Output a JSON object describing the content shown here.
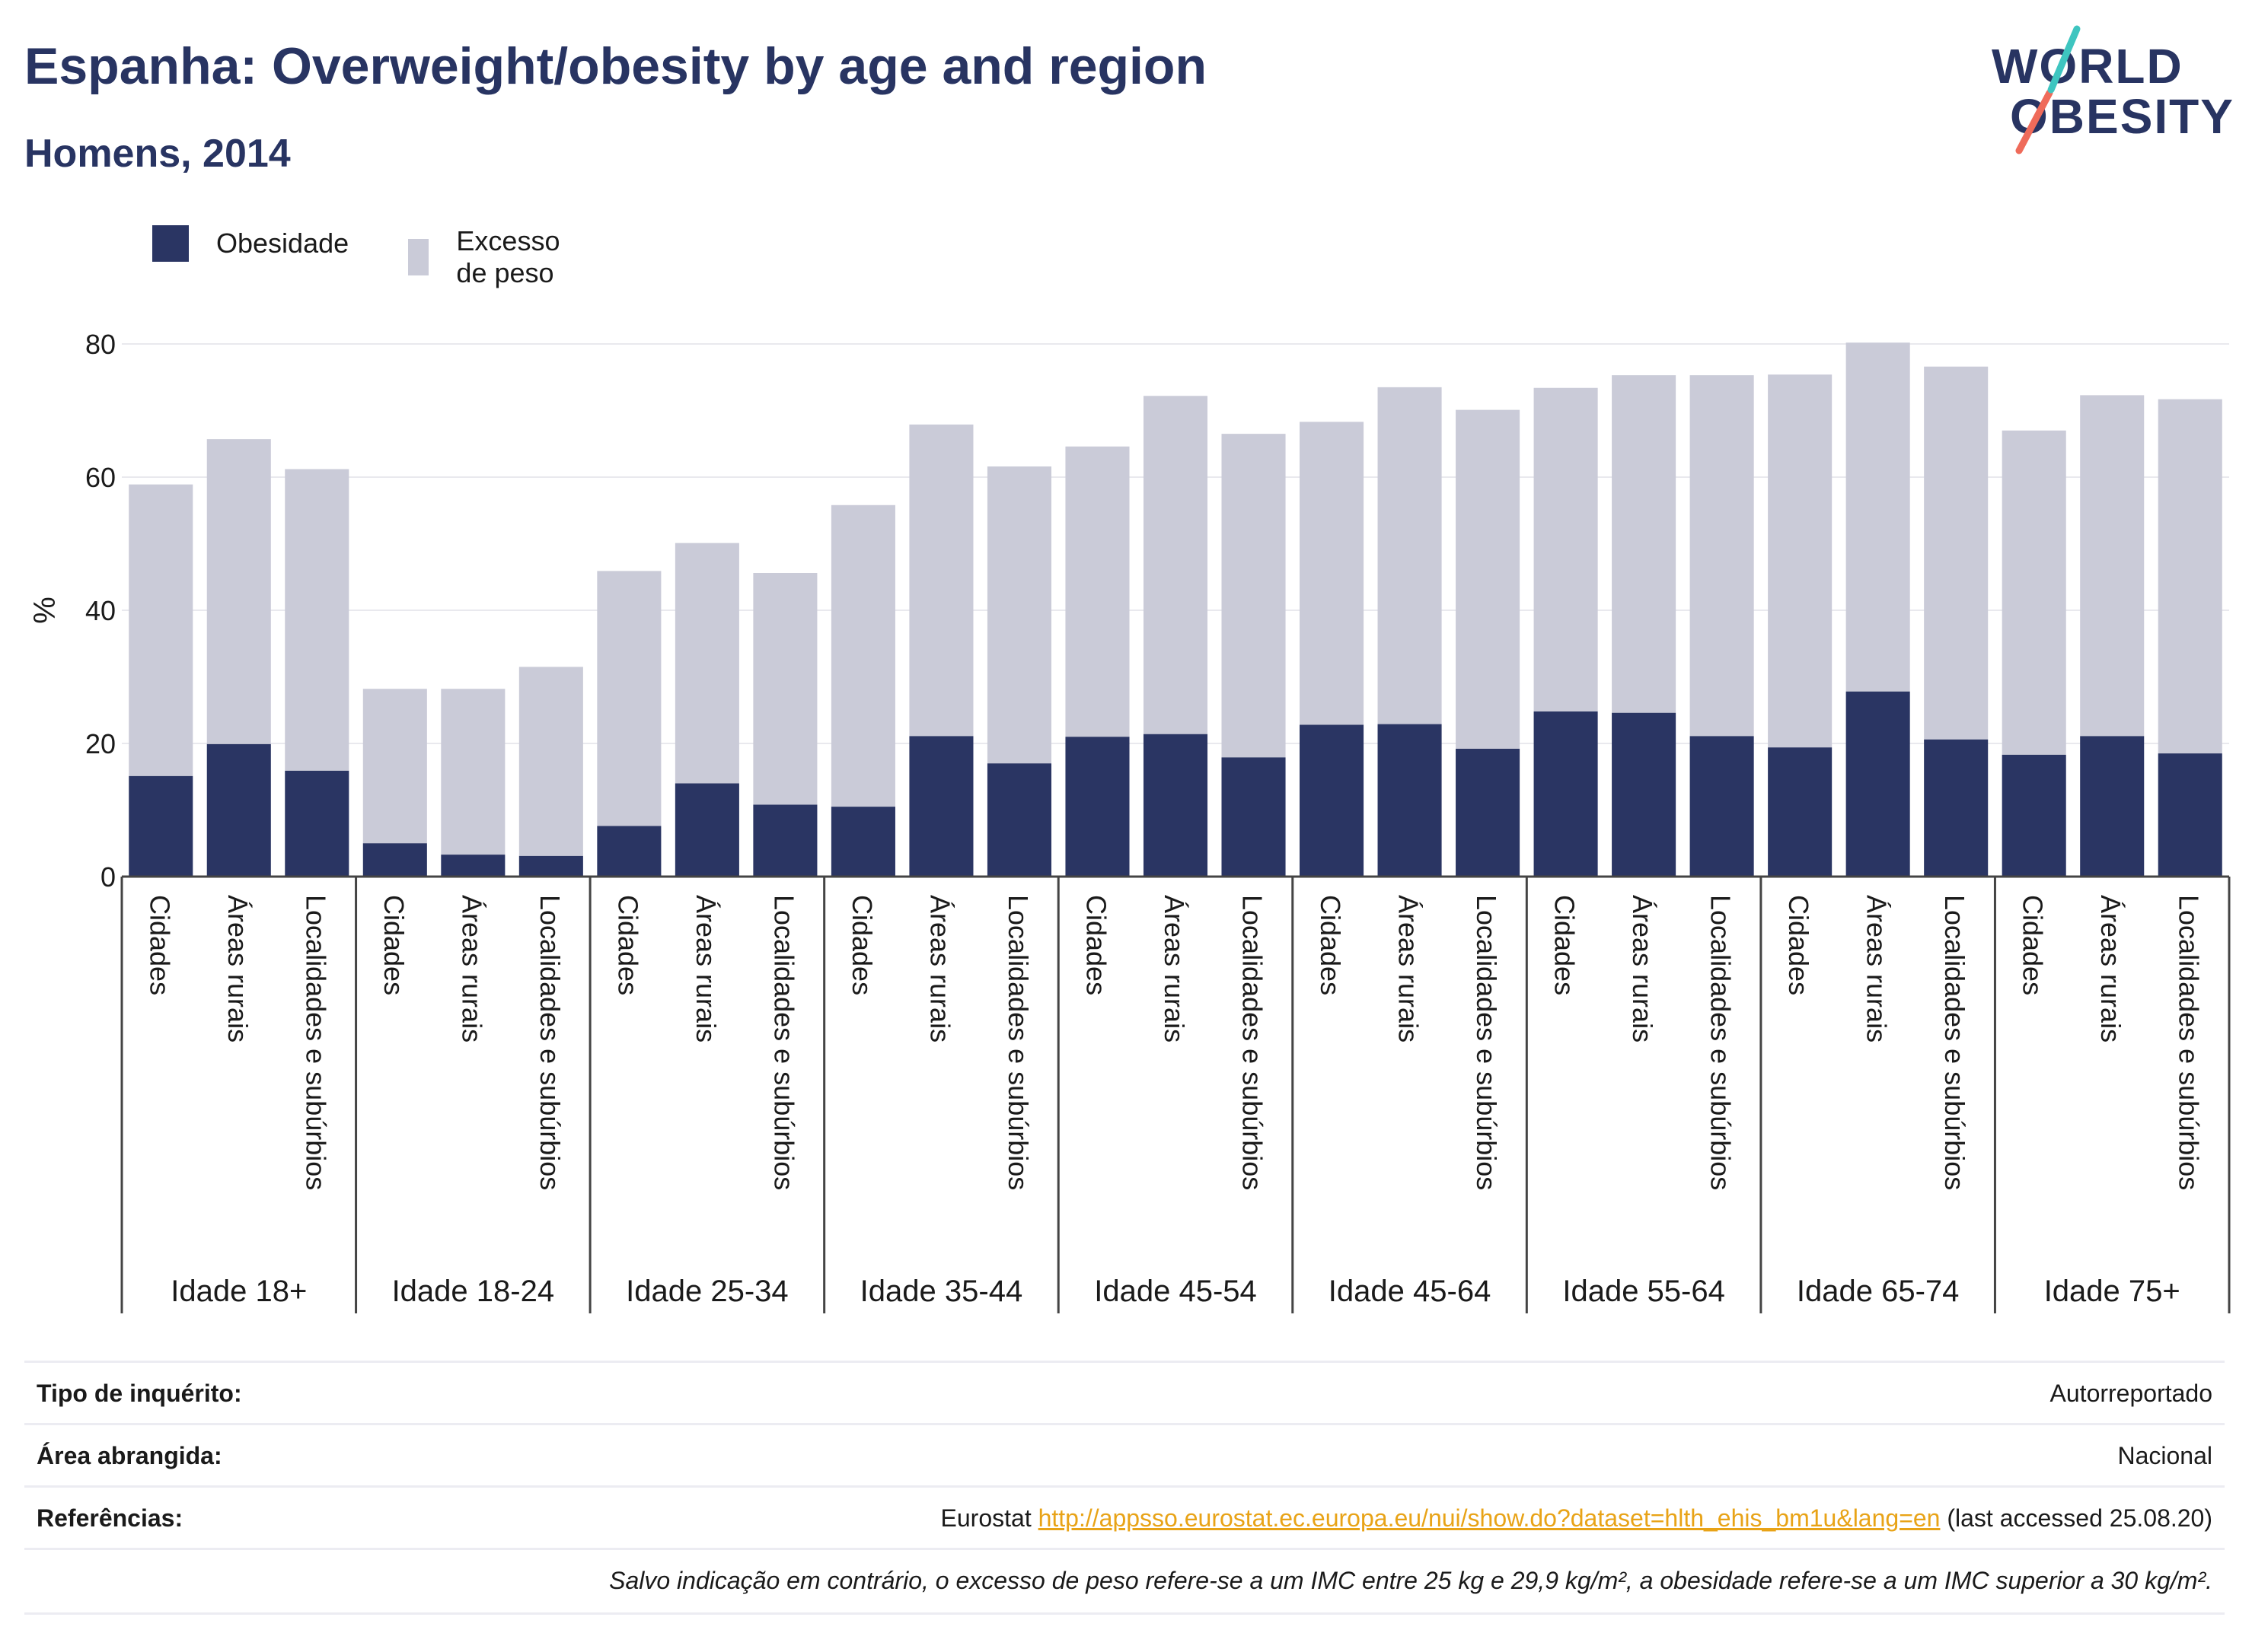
{
  "title": "Espanha: Overweight/obesity by age and region",
  "subtitle": "Homens, 2014",
  "logo": {
    "line1": "WORLD",
    "line2": "OBESITY"
  },
  "legend": {
    "obesity": "Obesidade",
    "overweight": "Excesso de peso"
  },
  "colors": {
    "obesity": "#2a3563",
    "overweight": "#cacbd8",
    "axis_text": "#1a1a1a",
    "grid": "#e9e9ee",
    "link": "#e8a317",
    "logo_navy": "#283462",
    "logo_teal": "#3ec5c0",
    "logo_coral": "#ef6b5a"
  },
  "chart_data": {
    "type": "bar",
    "stacked": true,
    "ylabel": "%",
    "ylim": [
      0,
      80
    ],
    "yticks": [
      "0",
      "20",
      "40",
      "60",
      "80"
    ],
    "grid": true,
    "legend_placement": "top-left",
    "groups": [
      "Idade 18+",
      "Idade 18-24",
      "Idade 25-34",
      "Idade 35-44",
      "Idade 45-54",
      "Idade 45-64",
      "Idade 55-64",
      "Idade 65-74",
      "Idade 75+"
    ],
    "categories": [
      "Cidades",
      "Áreas rurais",
      "Localidades e subúrbios"
    ],
    "series": [
      {
        "name": "Obesidade",
        "values": [
          [
            15.1,
            19.9,
            15.9
          ],
          [
            5.0,
            3.3,
            3.1
          ],
          [
            7.6,
            14.0,
            10.8
          ],
          [
            10.5,
            21.1,
            17.0
          ],
          [
            21.0,
            21.4,
            17.9
          ],
          [
            22.8,
            22.9,
            19.2
          ],
          [
            24.8,
            24.6,
            21.1
          ],
          [
            19.4,
            27.8,
            20.6
          ],
          [
            18.3,
            21.1,
            18.5
          ]
        ]
      },
      {
        "name": "Excesso de peso",
        "values": [
          [
            43.8,
            45.8,
            45.3
          ],
          [
            23.2,
            24.9,
            28.4
          ],
          [
            38.3,
            36.1,
            34.8
          ],
          [
            45.3,
            46.8,
            44.6
          ],
          [
            43.6,
            50.8,
            48.6
          ],
          [
            45.5,
            50.6,
            50.9
          ],
          [
            48.6,
            50.7,
            54.2
          ],
          [
            56.0,
            52.4,
            56.0
          ],
          [
            48.7,
            51.2,
            53.2
          ]
        ]
      }
    ]
  },
  "footer": {
    "survey_key": "Tipo de inquérito:",
    "survey_val": "Autorreportado",
    "area_key": "Área abrangida:",
    "area_val": "Nacional",
    "refs_key": "Referências:",
    "refs_prefix": "Eurostat ",
    "refs_link": "http://appsso.eurostat.ec.europa.eu/nui/show.do?dataset=hlth_ehis_bm1u&lang=en",
    "refs_suffix": " (last accessed 25.08.20)",
    "note": "Salvo indicação em contrário, o excesso de peso refere-se a um IMC entre 25 kg e 29,9 kg/m², a obesidade refere-se a um IMC superior a 30 kg/m²."
  }
}
